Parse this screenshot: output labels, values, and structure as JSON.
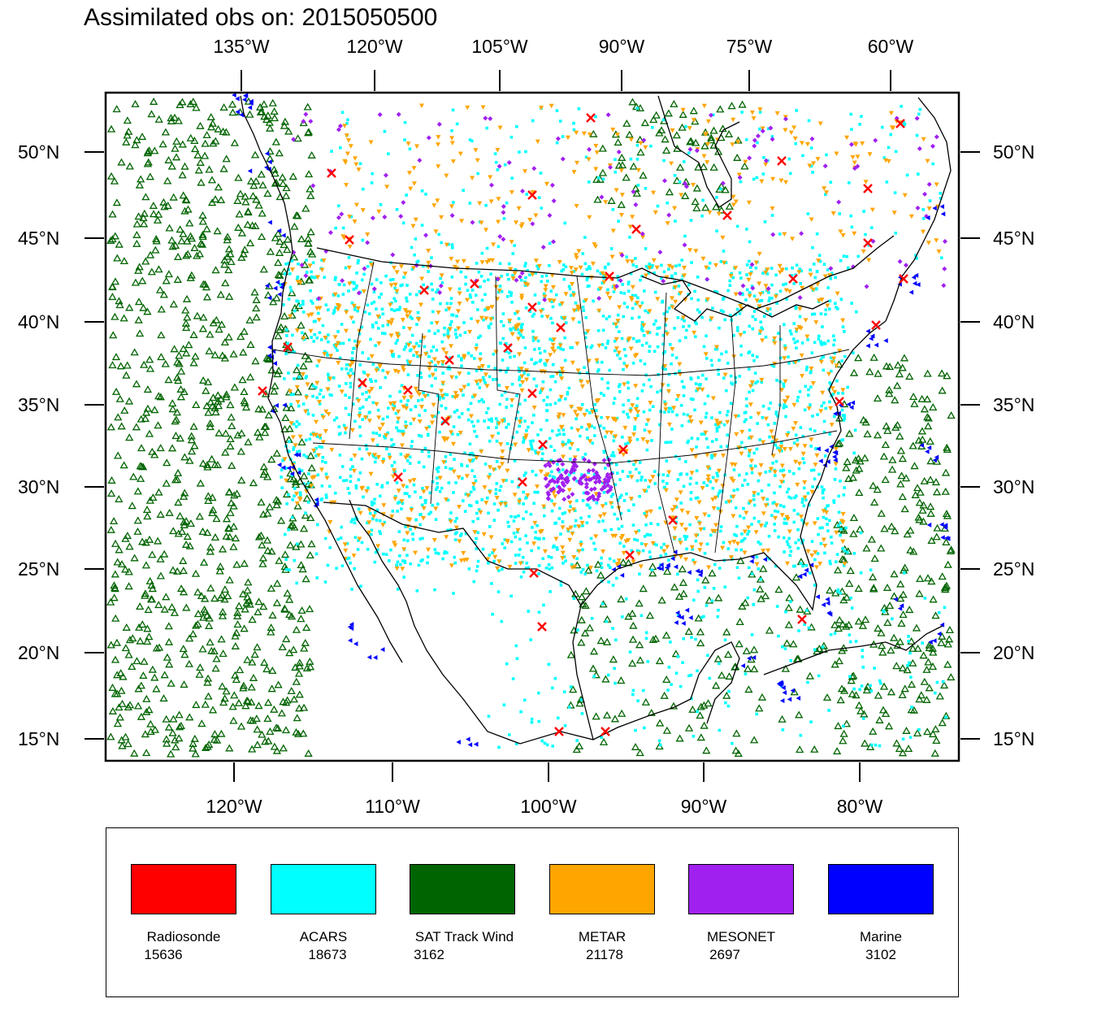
{
  "title": "Assimilated obs on: 2015050500",
  "axes": {
    "top_ticks": [
      "135°W",
      "120°W",
      "105°W",
      "90°W",
      "75°W",
      "60°W"
    ],
    "bottom_ticks": [
      "120°W",
      "110°W",
      "100°W",
      "90°W",
      "80°W"
    ],
    "left_ticks": [
      "50°N",
      "45°N",
      "40°N",
      "35°N",
      "30°N",
      "25°N",
      "20°N",
      "15°N"
    ],
    "right_ticks": [
      "50°N",
      "45°N",
      "40°N",
      "35°N",
      "30°N",
      "25°N",
      "20°N",
      "15°N"
    ]
  },
  "legend": [
    {
      "label": "Radiosonde",
      "count": "15636",
      "color": "#ff0000",
      "marker": "x-cross-icon"
    },
    {
      "label": "ACARS",
      "count": "18673",
      "color": "#00ffff",
      "marker": "square-dot-icon"
    },
    {
      "label": "SAT Track Wind",
      "count": "3162",
      "color": "#006400",
      "marker": "triangle-outline-icon"
    },
    {
      "label": "METAR",
      "count": "21178",
      "color": "#ffa500",
      "marker": "down-triangle-icon"
    },
    {
      "label": "MESONET",
      "count": "2697",
      "color": "#a020f0",
      "marker": "diamond-icon"
    },
    {
      "label": "Marine",
      "count": "3102",
      "color": "#0000ff",
      "marker": "left-triangle-icon"
    }
  ]
}
